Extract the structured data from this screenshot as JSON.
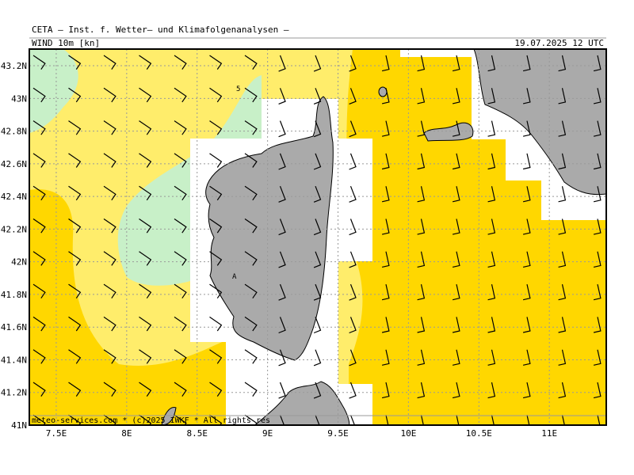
{
  "header": {
    "title": "CETA – Inst. f. Wetter– und Klimafolgenanalysen –",
    "product": "WIND 10m [kn]",
    "valid_time": "19.07.2025 12 UTC"
  },
  "map": {
    "xlim": [
      7.309,
      11.404
    ],
    "ylim": [
      41,
      43.302
    ],
    "xticks": [
      {
        "value": 7.5,
        "label": "7.5E"
      },
      {
        "value": 8,
        "label": "8E"
      },
      {
        "value": 8.5,
        "label": "8.5E"
      },
      {
        "value": 9,
        "label": "9E"
      },
      {
        "value": 9.5,
        "label": "9.5E"
      },
      {
        "value": 10,
        "label": "10E"
      },
      {
        "value": 10.5,
        "label": "10.5E"
      },
      {
        "value": 11,
        "label": "11E"
      }
    ],
    "yticks": [
      {
        "value": 41,
        "label": "41N"
      },
      {
        "value": 41.2,
        "label": "41.2N"
      },
      {
        "value": 41.4,
        "label": "41.4N"
      },
      {
        "value": 41.6,
        "label": "41.6N"
      },
      {
        "value": 41.8,
        "label": "41.8N"
      },
      {
        "value": 42,
        "label": "42N"
      },
      {
        "value": 42.2,
        "label": "42.2N"
      },
      {
        "value": 42.4,
        "label": "42.4N"
      },
      {
        "value": 42.6,
        "label": "42.6N"
      },
      {
        "value": 42.8,
        "label": "42.8N"
      },
      {
        "value": 43,
        "label": "43N"
      },
      {
        "value": 43.2,
        "label": "43.2N"
      }
    ],
    "annotations": [
      "5",
      "A"
    ]
  },
  "footer": "meteo-services.com * (c)2025 IWKF * All rights res"
}
